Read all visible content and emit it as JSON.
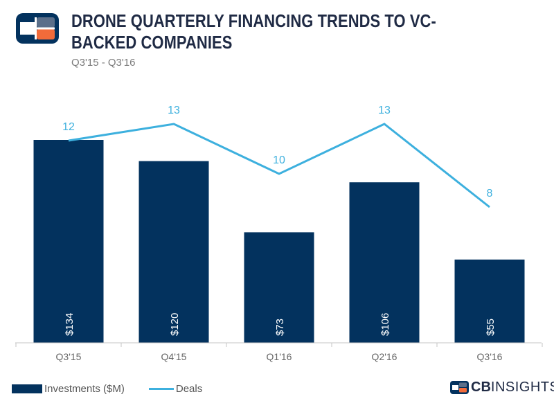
{
  "header": {
    "title": "DRONE QUARTERLY FINANCING TRENDS TO VC-BACKED COMPANIES",
    "subtitle": "Q3'15 - Q3'16"
  },
  "brand": {
    "cb": "CB",
    "rest": "INSIGHTS",
    "logo_icon": "cb-insights-logo-icon"
  },
  "colors": {
    "bar": "#03325e",
    "line": "#3db0de",
    "axis": "#c4c4c4",
    "tick_label": "#666666",
    "logo_orange": "#f26b3a"
  },
  "chart_data": {
    "type": "bar",
    "categories": [
      "Q3'15",
      "Q4'15",
      "Q1'16",
      "Q2'16",
      "Q3'16"
    ],
    "series": [
      {
        "name": "Investments ($M)",
        "type": "bar",
        "values": [
          134,
          120,
          73,
          106,
          55
        ],
        "labels": [
          "$134",
          "$120",
          "$73",
          "$106",
          "$55"
        ]
      },
      {
        "name": "Deals",
        "type": "line",
        "values": [
          12,
          13,
          10,
          13,
          8
        ],
        "labels": [
          "12",
          "13",
          "10",
          "13",
          "8"
        ]
      }
    ],
    "legend_position": "bottom-left",
    "grid": false
  }
}
